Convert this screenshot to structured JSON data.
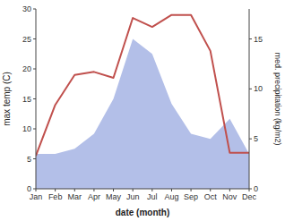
{
  "chart_data": {
    "type": "line",
    "xlabel": "date (month)",
    "ylabel": "max temp (C)",
    "y2label": "med. precipitation (kg/m2)",
    "categories": [
      "Jan",
      "Feb",
      "Mar",
      "Apr",
      "May",
      "Jun",
      "Jul",
      "Aug",
      "Sep",
      "Oct",
      "Nov",
      "Dec"
    ],
    "series": [
      {
        "type": "area",
        "axis": "y2",
        "color": "#b3bfe8",
        "values": [
          3.5,
          3.5,
          4.0,
          5.5,
          9.0,
          15.0,
          13.5,
          8.5,
          5.5,
          5.0,
          7.0,
          3.5
        ]
      },
      {
        "type": "line",
        "color": "#c0504d",
        "values": [
          5.5,
          14.0,
          19.0,
          19.5,
          18.5,
          28.5,
          27.0,
          29.0,
          29.0,
          23.0,
          6.0,
          6.0
        ]
      }
    ],
    "ylim": [
      0,
      30
    ],
    "yticks": [
      0,
      5,
      10,
      15,
      20,
      25,
      30
    ],
    "y2lim": [
      0,
      18
    ],
    "y2ticks": [
      0,
      5,
      10,
      15
    ],
    "grid": false
  }
}
